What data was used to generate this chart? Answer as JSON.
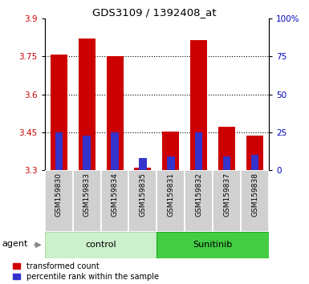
{
  "title": "GDS3109 / 1392408_at",
  "samples": [
    "GSM159830",
    "GSM159833",
    "GSM159834",
    "GSM159835",
    "GSM159831",
    "GSM159832",
    "GSM159837",
    "GSM159838"
  ],
  "red_values": [
    3.757,
    3.82,
    3.75,
    3.31,
    3.452,
    3.815,
    3.472,
    3.437
  ],
  "blue_values_pct": [
    25,
    23,
    25,
    8,
    9,
    25,
    9,
    10
  ],
  "ymin": 3.3,
  "ymax": 3.9,
  "yticks_left": [
    3.3,
    3.45,
    3.6,
    3.75,
    3.9
  ],
  "yticks_right": [
    0,
    25,
    50,
    75,
    100
  ],
  "bar_width": 0.6,
  "red_color": "#cc0000",
  "blue_color": "#3333cc",
  "left_label_color": "#cc0000",
  "right_label_color": "#0000bb",
  "legend_red": "transformed count",
  "legend_blue": "percentile rank within the sample",
  "bar_base": 3.3,
  "group_control_color": "#ccf0cc",
  "group_sunitinib_color": "#44cc44",
  "sample_bg_color": "#d0d0d0"
}
